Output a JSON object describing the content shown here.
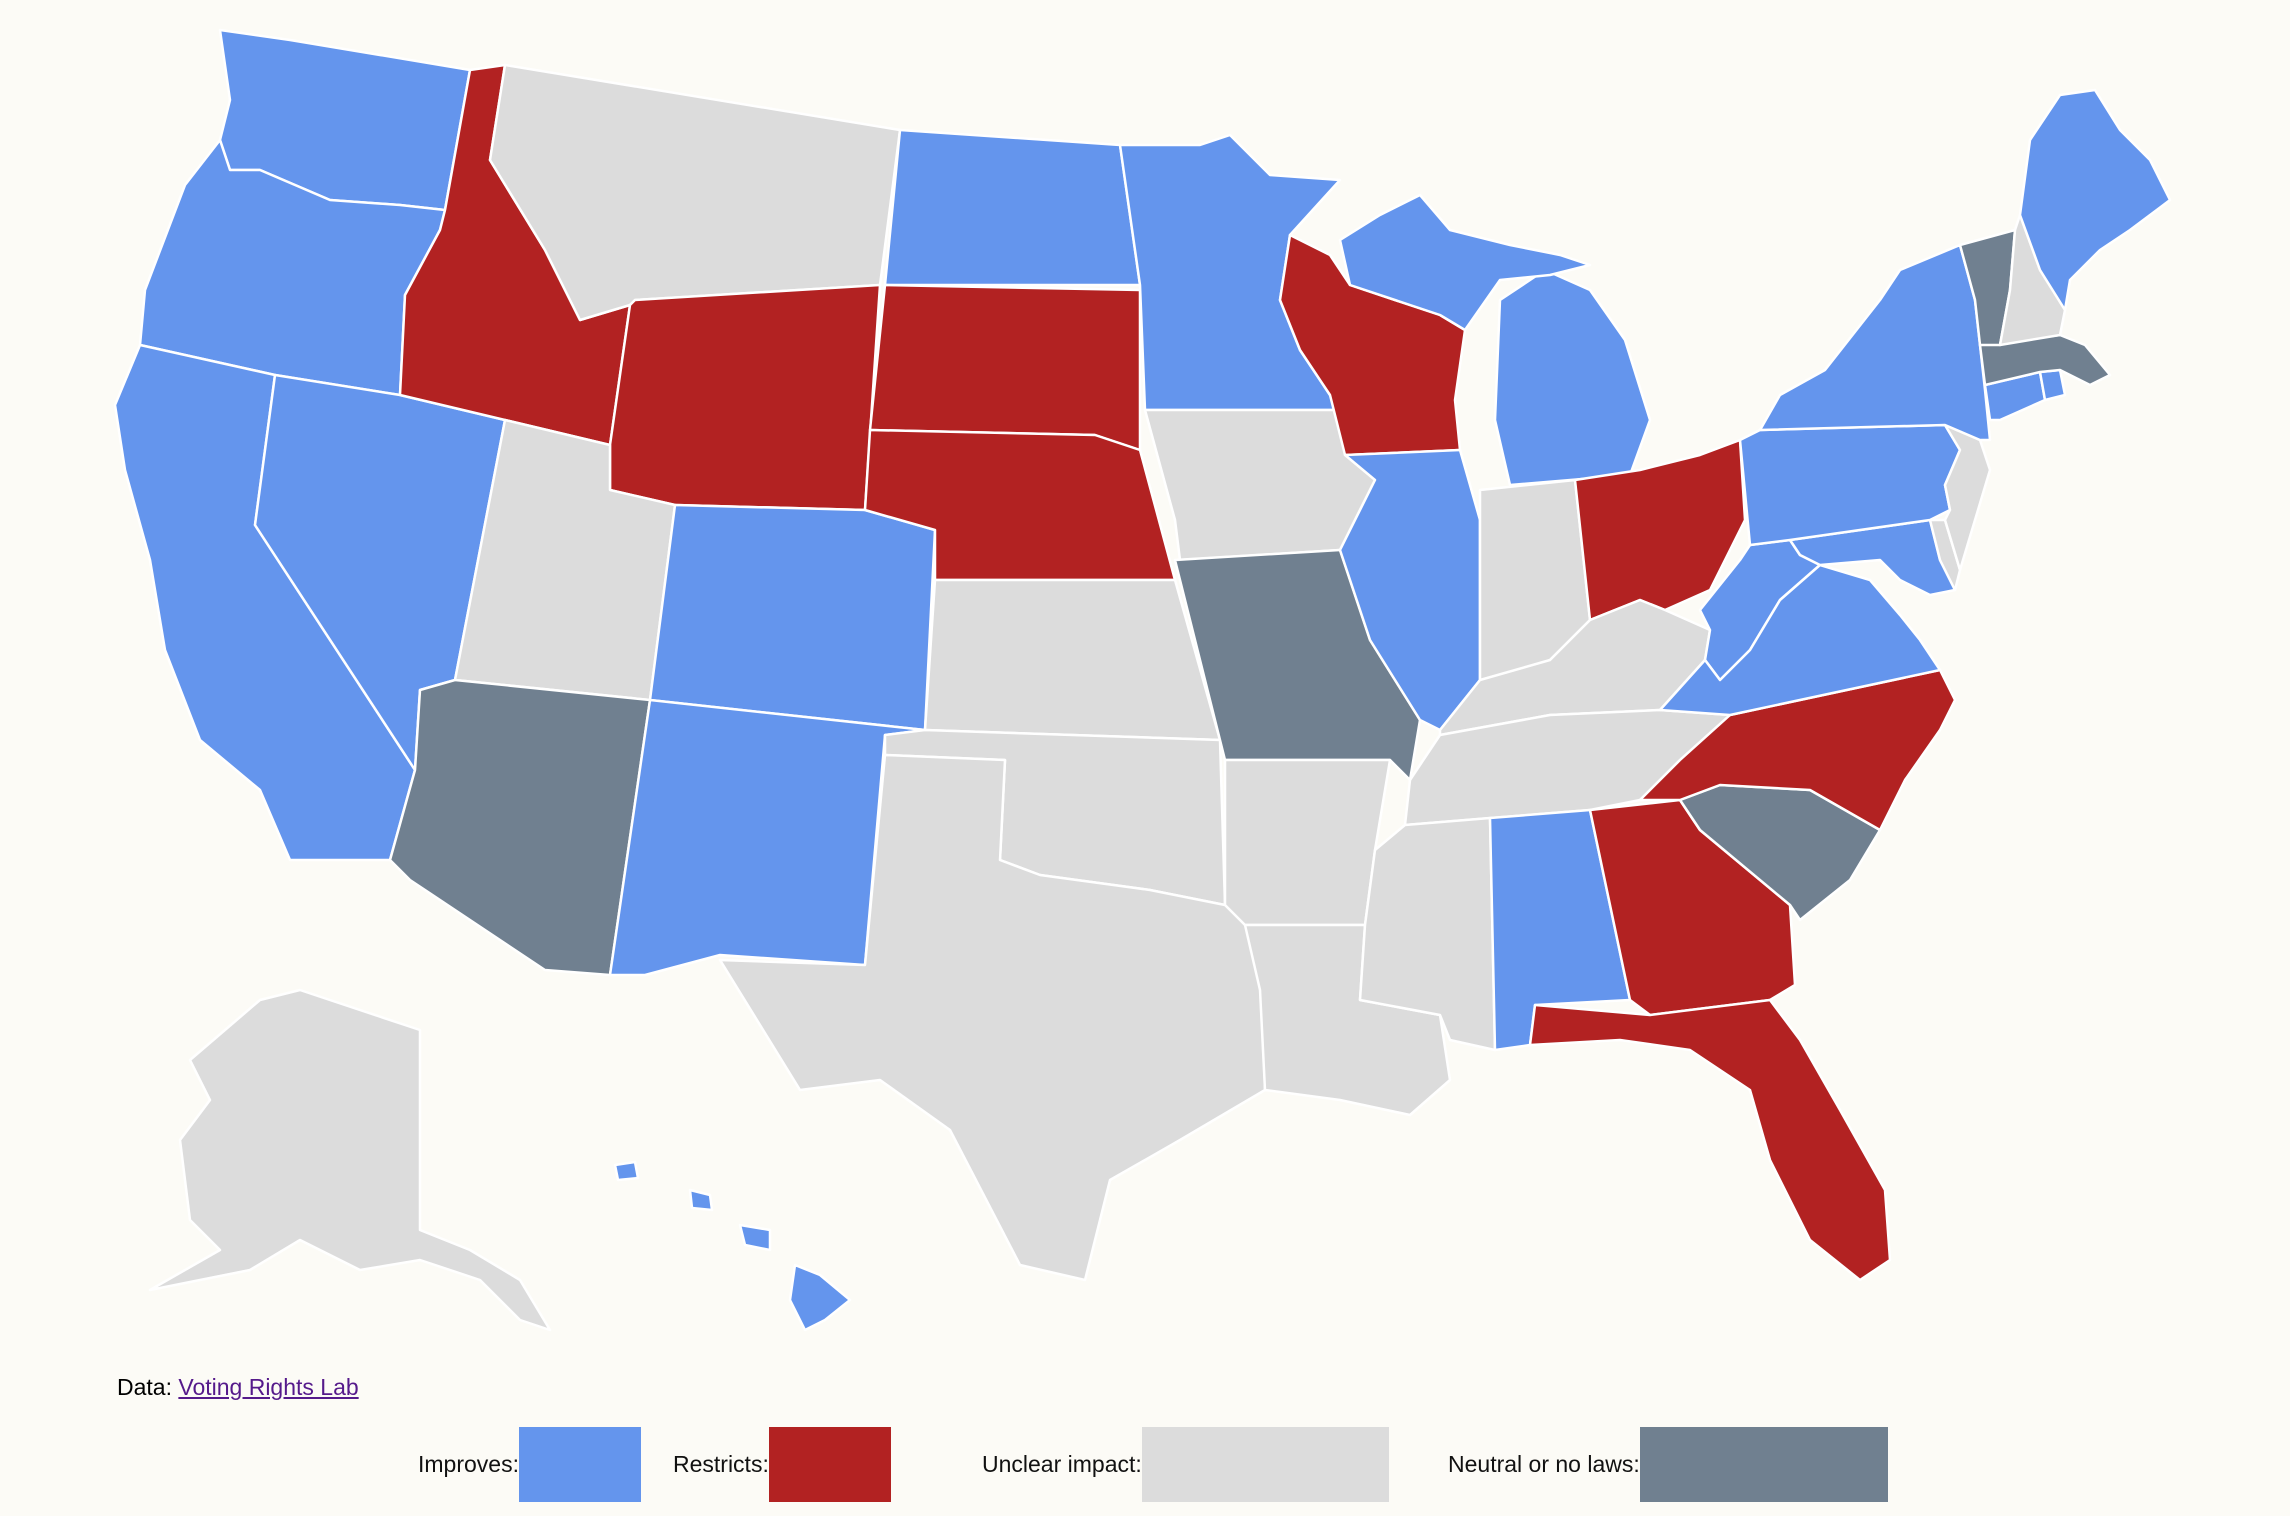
{
  "source": {
    "prefix": "Data:",
    "link_text": "Voting Rights Lab"
  },
  "legend": [
    {
      "label": "Improves:",
      "category": "improves",
      "color": "#6495ED"
    },
    {
      "label": "Restricts:",
      "category": "restricts",
      "color": "#B22222"
    },
    {
      "label": "Unclear impact:",
      "category": "unclear",
      "color": "#DCDCDC"
    },
    {
      "label": "Neutral or no laws:",
      "category": "neutral",
      "color": "#708090"
    }
  ],
  "states": {
    "WA": "improves",
    "OR": "improves",
    "CA": "improves",
    "NV": "improves",
    "ID": "restricts",
    "MT": "unclear",
    "WY": "restricts",
    "UT": "unclear",
    "AZ": "neutral",
    "CO": "improves",
    "NM": "improves",
    "ND": "improves",
    "SD": "restricts",
    "NE": "restricts",
    "KS": "unclear",
    "OK": "unclear",
    "TX": "unclear",
    "MN": "improves",
    "IA": "unclear",
    "MO": "neutral",
    "AR": "unclear",
    "LA": "unclear",
    "WI": "restricts",
    "IL": "improves",
    "MI": "improves",
    "IN": "unclear",
    "OH": "restricts",
    "KY": "unclear",
    "TN": "unclear",
    "MS": "unclear",
    "AL": "improves",
    "GA": "restricts",
    "FL": "restricts",
    "SC": "neutral",
    "NC": "restricts",
    "VA": "improves",
    "WV": "improves",
    "MD": "improves",
    "DE": "unclear",
    "PA": "improves",
    "NJ": "unclear",
    "NY": "improves",
    "CT": "improves",
    "RI": "improves",
    "MA": "neutral",
    "VT": "neutral",
    "NH": "unclear",
    "ME": "improves",
    "AK": "unclear",
    "HI": "improves"
  }
}
